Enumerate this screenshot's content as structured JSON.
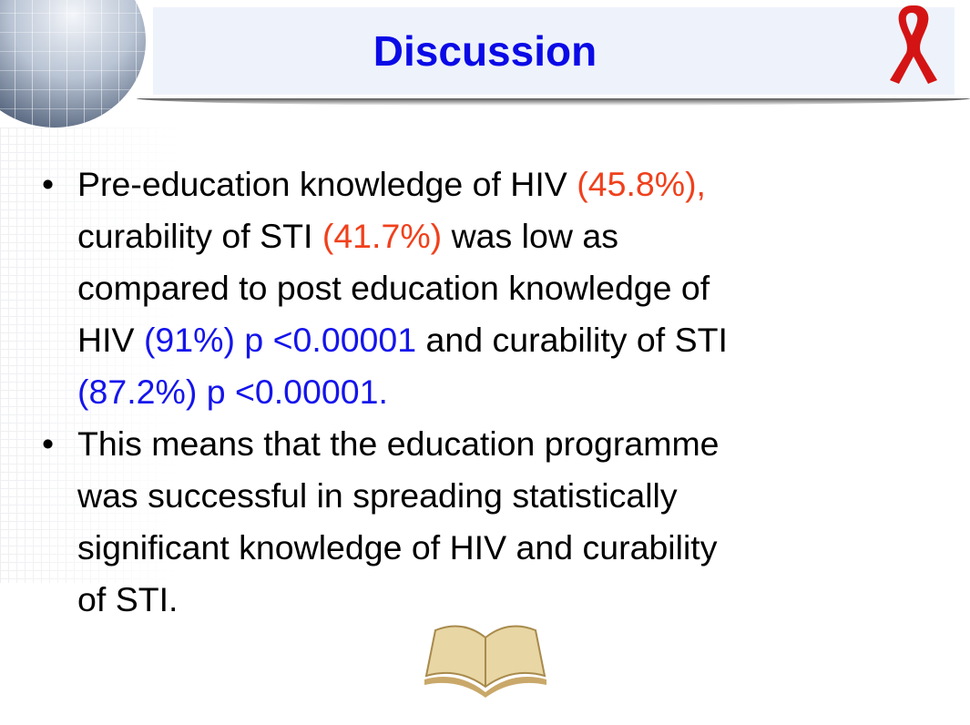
{
  "title": "Discussion",
  "colors": {
    "title": "#0a0ae6",
    "highlight_red": "#f0401c",
    "highlight_blue": "#1414ec"
  },
  "icons": [
    "globe-icon",
    "red-ribbon-icon",
    "open-book-icon"
  ],
  "bullets": [
    {
      "lines": [
        [
          {
            "t": "Pre-education knowledge of HIV ",
            "c": ""
          },
          {
            "t": "(45.8%),",
            "c": "red"
          }
        ],
        [
          {
            "t": "curability of STI ",
            "c": ""
          },
          {
            "t": "(41.7%)",
            "c": "red"
          },
          {
            "t": " was low as",
            "c": ""
          }
        ],
        [
          {
            "t": "compared to post education knowledge of",
            "c": ""
          }
        ],
        [
          {
            "t": "HIV ",
            "c": ""
          },
          {
            "t": "(91%) p <0.00001",
            "c": "blue"
          },
          {
            "t": " and curability of STI",
            "c": ""
          }
        ],
        [
          {
            "t": "(87.2%) p <0.00001.",
            "c": "blue"
          }
        ]
      ]
    },
    {
      "lines": [
        [
          {
            "t": "This means that the education programme",
            "c": ""
          }
        ],
        [
          {
            "t": "was successful in spreading statistically",
            "c": ""
          }
        ],
        [
          {
            "t": "significant knowledge of HIV and curability",
            "c": ""
          }
        ],
        [
          {
            "t": "of STI.",
            "c": ""
          }
        ]
      ]
    }
  ]
}
